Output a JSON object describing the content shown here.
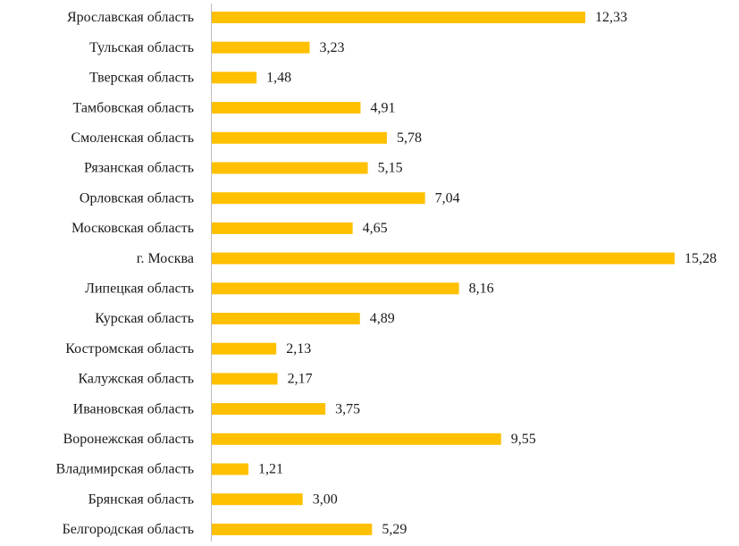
{
  "chart_data": {
    "type": "bar",
    "categories": [
      "Ярославская область",
      "Тульская область",
      "Тверская область",
      "Тамбовская область",
      "Смоленская область",
      "Рязанская область",
      "Орловская область",
      "Московская область",
      "г. Москва",
      "Липецкая область",
      "Курская область",
      "Костромская область",
      "Калужская область",
      "Ивановская область",
      "Воронежская область",
      "Владимирская область",
      "Брянская область",
      "Белгородская область"
    ],
    "values": [
      12.33,
      3.23,
      1.48,
      4.91,
      5.78,
      5.15,
      7.04,
      4.65,
      15.28,
      8.16,
      4.89,
      2.13,
      2.17,
      3.75,
      9.55,
      1.21,
      3.0,
      5.29
    ],
    "value_labels": [
      "12,33",
      "3,23",
      "1,48",
      "4,91",
      "5,78",
      "5,15",
      "7,04",
      "4,65",
      "15,28",
      "8,16",
      "4,89",
      "2,13",
      "2,17",
      "3,75",
      "9,55",
      "1,21",
      "3,00",
      "5,29"
    ],
    "color": "#ffc000"
  }
}
